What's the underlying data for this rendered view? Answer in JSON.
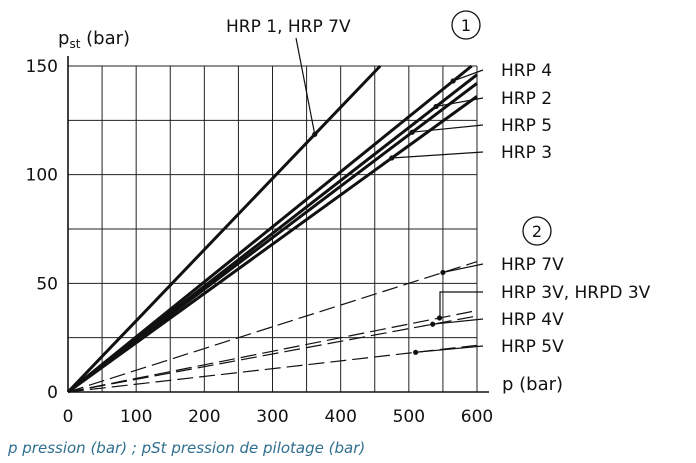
{
  "chart_data": {
    "type": "line",
    "ylabel_main": "p",
    "ylabel_sub": "st",
    "ylabel_unit": "(bar)",
    "xlabel": "p  (bar)",
    "xlim": [
      0,
      600
    ],
    "ylim": [
      0,
      150
    ],
    "xticks": [
      0,
      100,
      200,
      300,
      400,
      500,
      600
    ],
    "yticks": [
      0,
      50,
      100,
      150
    ],
    "grid": true,
    "group_markers": [
      "1",
      "2"
    ],
    "series": [
      {
        "name": "HRP 1, HRP 7V",
        "style": "solid",
        "slope": 0.3275,
        "dot_x": 362
      },
      {
        "name": "HRP 4",
        "style": "solid",
        "slope": 0.2533,
        "dot_x": 565
      },
      {
        "name": "HRP 2",
        "style": "solid",
        "slope": 0.2433,
        "dot_x": 540
      },
      {
        "name": "HRP 5",
        "style": "solid",
        "slope": 0.2367,
        "dot_x": 505
      },
      {
        "name": "HRP 3",
        "style": "solid",
        "slope": 0.2267,
        "dot_x": 475
      },
      {
        "name": "HRP 7V",
        "style": "dashed",
        "slope": 0.1,
        "dot_x": 550
      },
      {
        "name": "HRP 3V, HRPD 3V",
        "style": "dashed",
        "slope": 0.0625,
        "dot_x": 545
      },
      {
        "name": "HRP 4V",
        "style": "dashed",
        "slope": 0.0583,
        "dot_x": 535
      },
      {
        "name": "HRP 5V",
        "style": "dashed",
        "slope": 0.0358,
        "dot_x": 510
      }
    ]
  },
  "caption": "p pression (bar) ; pSt pression de pilotage (bar)"
}
